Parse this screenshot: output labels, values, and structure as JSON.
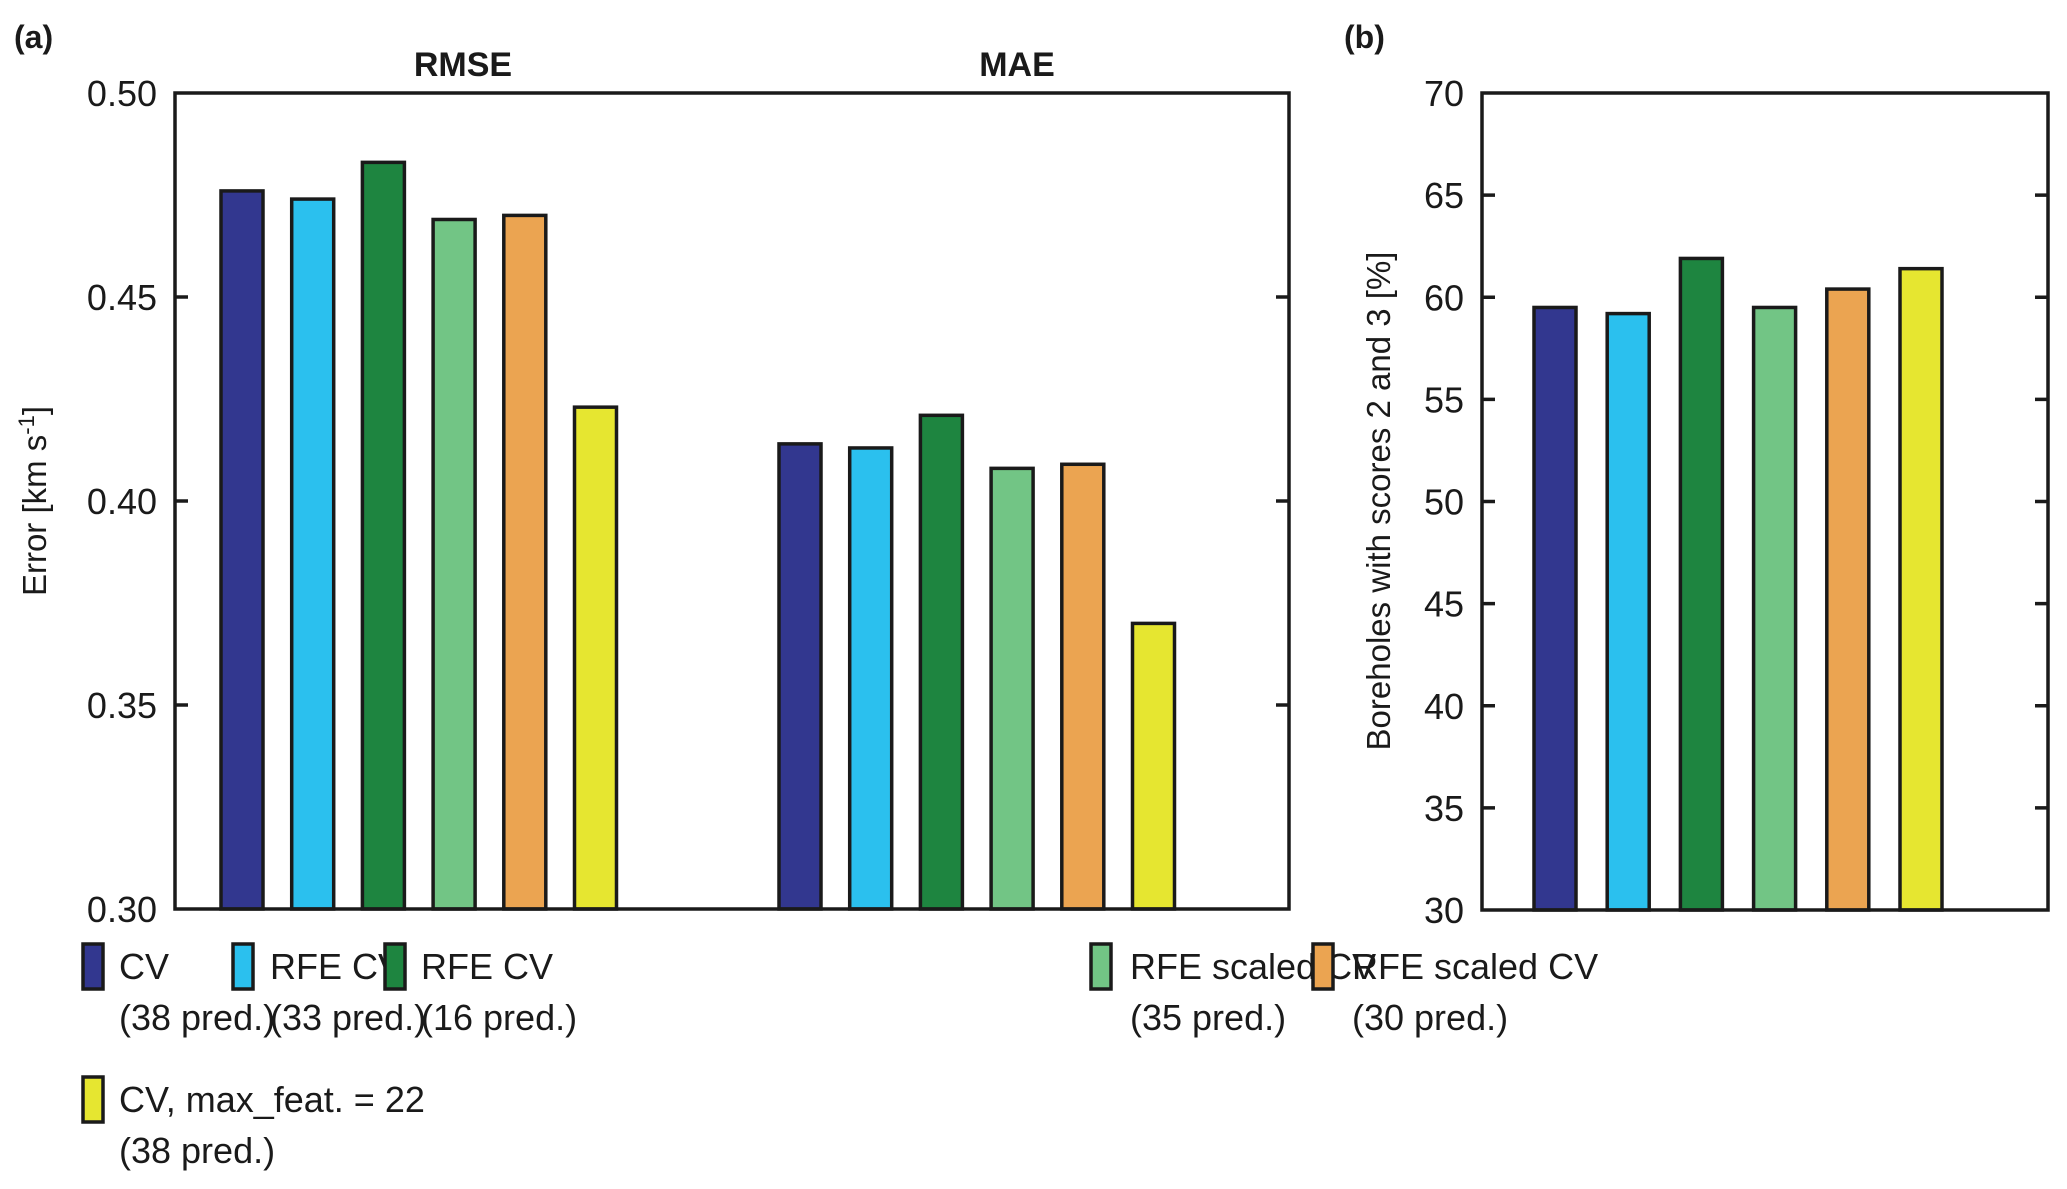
{
  "chart_data": [
    {
      "panel": "(a)",
      "type": "bar",
      "ylabel": "Error [km s-1]",
      "ylabel_main": "Error [km s",
      "ylabel_sup": "-1",
      "ylabel_end": "]",
      "ylim": [
        0.3,
        0.5
      ],
      "yticks": [
        "0.30",
        "0.35",
        "0.40",
        "0.45",
        "0.50"
      ],
      "ytick_values": [
        0.3,
        0.35,
        0.4,
        0.45,
        0.5
      ],
      "categories": [
        "RMSE",
        "MAE"
      ],
      "series": [
        {
          "name": "CV (38 pred.)",
          "values": [
            0.476,
            0.414
          ]
        },
        {
          "name": "RFE CV (33 pred.)",
          "values": [
            0.474,
            0.413
          ]
        },
        {
          "name": "RFE CV (16 pred.)",
          "values": [
            0.483,
            0.421
          ]
        },
        {
          "name": "RFE scaled CV (35 pred.)",
          "values": [
            0.469,
            0.408
          ]
        },
        {
          "name": "RFE scaled CV (30 pred.)",
          "values": [
            0.47,
            0.409
          ]
        },
        {
          "name": "CV, max_feat. = 22 (38 pred.)",
          "values": [
            0.423,
            0.37
          ]
        }
      ],
      "grid": false
    },
    {
      "panel": "(b)",
      "type": "bar",
      "ylabel": "Boreholes with scores 2 and 3 [%]",
      "ylim": [
        30,
        70
      ],
      "yticks": [
        "30",
        "35",
        "40",
        "45",
        "50",
        "55",
        "60",
        "65",
        "70"
      ],
      "ytick_values": [
        30,
        35,
        40,
        45,
        50,
        55,
        60,
        65,
        70
      ],
      "categories": [
        "CV (38 pred.)",
        "RFE CV (33 pred.)",
        "RFE CV (16 pred.)",
        "RFE scaled CV (35 pred.)",
        "RFE scaled CV (30 pred.)",
        "CV, max_feat. = 22 (38 pred.)"
      ],
      "values": [
        59.5,
        59.2,
        61.9,
        59.5,
        60.4,
        61.4
      ],
      "grid": false
    }
  ],
  "legend": {
    "placement": "bottom",
    "items": [
      {
        "line1": "CV",
        "line2": "(38 pred.)",
        "color": "#32378F"
      },
      {
        "line1": "RFE CV",
        "line2": "(33 pred.)",
        "color": "#2BC0EE"
      },
      {
        "line1": "RFE CV",
        "line2": "(16 pred.)",
        "color": "#1E8540"
      },
      {
        "line1": "RFE scaled CV",
        "line2": "(35 pred.)",
        "color": "#72C585"
      },
      {
        "line1": "RFE scaled CV",
        "line2": "(30 pred.)",
        "color": "#EBA451"
      },
      {
        "line1": "CV, max_feat. = 22",
        "line2": "(38 pred.)",
        "color": "#E6E630"
      }
    ]
  },
  "colors": {
    "axis": "#1a1a1a",
    "bar_outline": "#1a1a1a"
  }
}
